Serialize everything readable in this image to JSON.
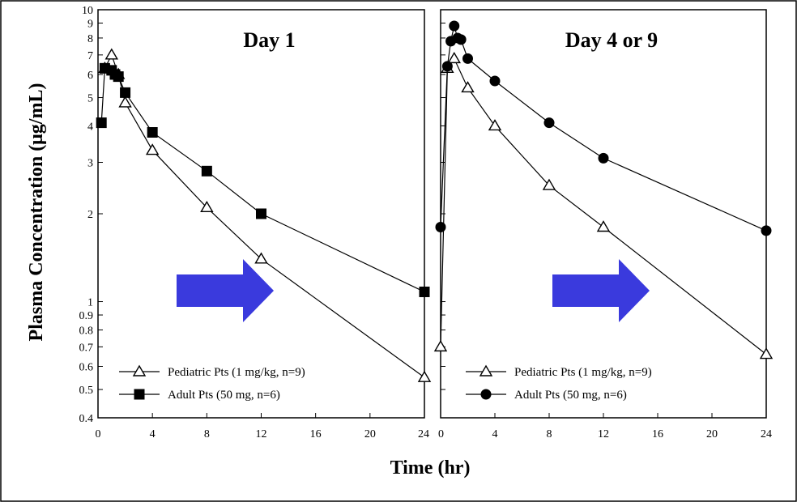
{
  "ylabel": "Plasma Concentration (μg/mL)",
  "xlabel": "Time (hr)",
  "chart_data": [
    {
      "type": "line",
      "title": "Day 1",
      "x_ticks": [
        "0",
        "4",
        "8",
        "12",
        "16",
        "20",
        "24"
      ],
      "y_scale": "log",
      "y_ticks": [
        "0.4",
        "0.5",
        "0.6",
        "0.7",
        "0.8",
        "0.9",
        "1",
        "2",
        "3",
        "4",
        "5",
        "6",
        "7",
        "8",
        "9",
        "10"
      ],
      "xlim": [
        0,
        24
      ],
      "ylim": [
        0.4,
        10
      ],
      "grid": false,
      "legend_position": "bottom-left",
      "series": [
        {
          "name": "Pediatric Pts (1 mg/kg, n=9)",
          "marker": "open-triangle",
          "x": [
            0.5,
            1,
            1.5,
            2,
            4,
            8,
            12,
            24
          ],
          "y": [
            6.3,
            7.0,
            6.0,
            4.8,
            3.3,
            2.1,
            1.4,
            0.55
          ]
        },
        {
          "name": "Adult Pts (50 mg, n=6)",
          "marker": "filled-square",
          "x": [
            0.25,
            0.5,
            1,
            1.25,
            1.5,
            2,
            4,
            8,
            12,
            24
          ],
          "y": [
            4.1,
            6.3,
            6.2,
            6.0,
            5.9,
            5.2,
            3.8,
            2.8,
            2.0,
            1.08
          ]
        }
      ]
    },
    {
      "type": "line",
      "title": "Day 4 or 9",
      "x_ticks": [
        "0",
        "4",
        "8",
        "12",
        "16",
        "20",
        "24"
      ],
      "y_scale": "log",
      "xlim": [
        0,
        24
      ],
      "ylim": [
        0.4,
        10
      ],
      "grid": false,
      "legend_position": "bottom-left",
      "series": [
        {
          "name": "Pediatric Pts (1 mg/kg, n=9)",
          "marker": "open-triangle",
          "x": [
            0,
            0.5,
            1,
            2,
            4,
            8,
            12,
            24
          ],
          "y": [
            0.7,
            6.3,
            6.8,
            5.4,
            4.0,
            2.5,
            1.8,
            0.66
          ]
        },
        {
          "name": "Adult Pts (50 mg, n=6)",
          "marker": "filled-circle",
          "x": [
            0,
            0.5,
            0.75,
            1,
            1.25,
            1.5,
            2,
            4,
            8,
            12,
            24
          ],
          "y": [
            1.8,
            6.4,
            7.8,
            8.8,
            8.0,
            7.9,
            6.8,
            5.7,
            4.1,
            3.1,
            1.75
          ]
        }
      ]
    }
  ],
  "colors": {
    "arrow": "#3A3ADD",
    "line": "#000000"
  }
}
